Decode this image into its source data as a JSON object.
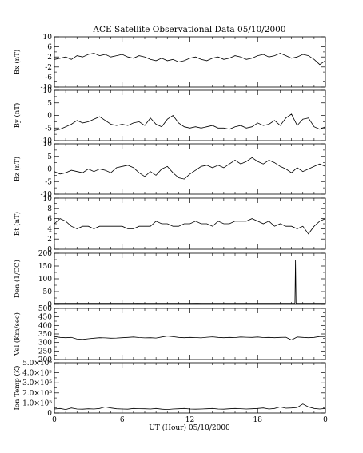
{
  "figure": {
    "title": "ACE Satellite Observational Data   05/10/2000",
    "xlabel": "UT (Hour)   05/10/2000"
  },
  "chart_data": [
    {
      "type": "line",
      "id": "bx",
      "ylabel": "Bx (nT)",
      "ylim": [
        -10,
        10
      ],
      "yticks": [
        "-10",
        "-6",
        "-2",
        "2",
        "6",
        "10"
      ],
      "yticks_values": [
        -10,
        -6,
        -2,
        2,
        6,
        10
      ],
      "xlim": [
        0,
        24
      ],
      "x": [
        0,
        0.5,
        1,
        1.5,
        2,
        2.5,
        3,
        3.5,
        4,
        4.5,
        5,
        5.5,
        6,
        6.5,
        7,
        7.5,
        8,
        8.5,
        9,
        9.5,
        10,
        10.5,
        11,
        11.5,
        12,
        12.5,
        13,
        13.5,
        14,
        14.5,
        15,
        15.5,
        16,
        16.5,
        17,
        17.5,
        18,
        18.5,
        19,
        19.5,
        20,
        20.5,
        21,
        21.5,
        22,
        22.5,
        23,
        23.5,
        24
      ],
      "values": [
        1.0,
        1.5,
        2.0,
        1.0,
        2.5,
        2.0,
        3.0,
        3.5,
        2.5,
        3.0,
        2.0,
        2.5,
        3.0,
        2.0,
        1.5,
        2.5,
        2.0,
        1.0,
        0.5,
        1.5,
        0.5,
        1.0,
        0.0,
        0.5,
        1.5,
        2.0,
        1.0,
        0.5,
        1.5,
        2.0,
        1.0,
        1.5,
        2.5,
        2.0,
        1.0,
        1.5,
        2.5,
        3.0,
        2.0,
        2.5,
        3.5,
        2.5,
        1.5,
        2.0,
        3.0,
        2.5,
        1.0,
        -1.0,
        0.5
      ]
    },
    {
      "type": "line",
      "id": "by",
      "ylabel": "By (nT)",
      "ylim": [
        -10,
        10
      ],
      "yticks": [
        "-10",
        "-5",
        "0",
        "5",
        "10"
      ],
      "yticks_values": [
        -10,
        -5,
        0,
        5,
        10
      ],
      "xlim": [
        0,
        24
      ],
      "x": [
        0,
        0.5,
        1,
        1.5,
        2,
        2.5,
        3,
        3.5,
        4,
        4.5,
        5,
        5.5,
        6,
        6.5,
        7,
        7.5,
        8,
        8.5,
        9,
        9.5,
        10,
        10.5,
        11,
        11.5,
        12,
        12.5,
        13,
        13.5,
        14,
        14.5,
        15,
        15.5,
        16,
        16.5,
        17,
        17.5,
        18,
        18.5,
        19,
        19.5,
        20,
        20.5,
        21,
        21.5,
        22,
        22.5,
        23,
        23.5,
        24
      ],
      "values": [
        -6.0,
        -5.5,
        -4.5,
        -3.5,
        -2.0,
        -3.0,
        -2.5,
        -1.5,
        -0.5,
        -2.0,
        -3.5,
        -4.0,
        -3.5,
        -4.0,
        -3.0,
        -2.5,
        -4.0,
        -1.0,
        -3.5,
        -4.5,
        -1.5,
        0.0,
        -3.0,
        -4.5,
        -5.0,
        -4.5,
        -5.0,
        -4.5,
        -4.0,
        -5.0,
        -5.0,
        -5.5,
        -4.5,
        -4.0,
        -5.0,
        -4.5,
        -3.0,
        -4.0,
        -3.5,
        -2.0,
        -4.0,
        -1.0,
        0.5,
        -4.0,
        -1.5,
        -1.0,
        -4.5,
        -5.5,
        -4.5
      ]
    },
    {
      "type": "line",
      "id": "bz",
      "ylabel": "Bz (nT)",
      "ylim": [
        -10,
        10
      ],
      "yticks": [
        "-10",
        "-5",
        "0",
        "5",
        "10"
      ],
      "yticks_values": [
        -10,
        -5,
        0,
        5,
        10
      ],
      "xlim": [
        0,
        24
      ],
      "x": [
        0,
        0.5,
        1,
        1.5,
        2,
        2.5,
        3,
        3.5,
        4,
        4.5,
        5,
        5.5,
        6,
        6.5,
        7,
        7.5,
        8,
        8.5,
        9,
        9.5,
        10,
        10.5,
        11,
        11.5,
        12,
        12.5,
        13,
        13.5,
        14,
        14.5,
        15,
        15.5,
        16,
        16.5,
        17,
        17.5,
        18,
        18.5,
        19,
        19.5,
        20,
        20.5,
        21,
        21.5,
        22,
        22.5,
        23,
        23.5,
        24
      ],
      "values": [
        -1.0,
        -2.0,
        -1.5,
        -0.5,
        -1.0,
        -1.5,
        0.0,
        -1.0,
        0.0,
        -0.5,
        -1.5,
        0.5,
        1.0,
        1.5,
        0.5,
        -1.5,
        -3.0,
        -1.0,
        -2.5,
        0.0,
        1.0,
        -1.5,
        -3.5,
        -4.0,
        -2.0,
        -0.5,
        1.0,
        1.5,
        0.5,
        1.5,
        0.5,
        2.0,
        3.5,
        2.0,
        3.0,
        4.5,
        3.0,
        2.0,
        3.5,
        2.5,
        1.0,
        0.0,
        -1.5,
        0.5,
        -1.0,
        0.0,
        1.0,
        2.0,
        1.0
      ]
    },
    {
      "type": "line",
      "id": "bt",
      "ylabel": "Bt (nT)",
      "ylim": [
        0,
        10
      ],
      "yticks": [
        "0",
        "2",
        "4",
        "6",
        "8",
        "10"
      ],
      "yticks_values": [
        0,
        2,
        4,
        6,
        8,
        10
      ],
      "xlim": [
        0,
        24
      ],
      "x": [
        0,
        0.5,
        1,
        1.5,
        2,
        2.5,
        3,
        3.5,
        4,
        4.5,
        5,
        5.5,
        6,
        6.5,
        7,
        7.5,
        8,
        8.5,
        9,
        9.5,
        10,
        10.5,
        11,
        11.5,
        12,
        12.5,
        13,
        13.5,
        14,
        14.5,
        15,
        15.5,
        16,
        16.5,
        17,
        17.5,
        18,
        18.5,
        19,
        19.5,
        20,
        20.5,
        21,
        21.5,
        22,
        22.5,
        23,
        23.5,
        24
      ],
      "values": [
        5.0,
        6.0,
        5.5,
        4.5,
        4.0,
        4.5,
        4.5,
        4.0,
        4.5,
        4.5,
        4.5,
        4.5,
        4.5,
        4.0,
        4.0,
        4.5,
        4.5,
        4.5,
        5.5,
        5.0,
        5.0,
        4.5,
        4.5,
        5.0,
        5.0,
        5.5,
        5.0,
        5.0,
        4.5,
        5.5,
        5.0,
        5.0,
        5.5,
        5.5,
        5.5,
        6.0,
        5.5,
        5.0,
        5.5,
        4.5,
        5.0,
        4.5,
        4.5,
        4.0,
        4.5,
        3.0,
        4.5,
        5.5,
        6.0
      ]
    },
    {
      "type": "line",
      "id": "den",
      "ylabel": "Den (1/CC)",
      "ylim": [
        0,
        200
      ],
      "yticks": [
        "0",
        "50",
        "100",
        "150",
        "200"
      ],
      "yticks_values": [
        0,
        50,
        100,
        150,
        200
      ],
      "xlim": [
        0,
        24
      ],
      "x": [
        0,
        1,
        2,
        3,
        4,
        5,
        6,
        7,
        8,
        9,
        10,
        11,
        12,
        13,
        14,
        15,
        16,
        17,
        18,
        19,
        20,
        21,
        21.3,
        21.35,
        21.4,
        21.5,
        22,
        23,
        24
      ],
      "values": [
        4,
        4,
        4,
        4,
        4,
        4,
        4,
        4,
        5,
        5,
        5,
        5,
        5,
        4,
        4,
        4,
        4,
        4,
        4,
        4,
        4,
        4,
        4,
        175,
        4,
        4,
        4,
        4,
        4
      ]
    },
    {
      "type": "line",
      "id": "vel",
      "ylabel": "Vel (Km/sec)",
      "ylim": [
        200,
        500
      ],
      "yticks": [
        "200",
        "250",
        "300",
        "350",
        "400",
        "450",
        "500"
      ],
      "yticks_values": [
        200,
        250,
        300,
        350,
        400,
        450,
        500
      ],
      "xlim": [
        0,
        24
      ],
      "x": [
        0,
        0.5,
        1,
        1.5,
        2,
        2.5,
        3,
        3.5,
        4,
        4.5,
        5,
        5.5,
        6,
        6.5,
        7,
        7.5,
        8,
        8.5,
        9,
        9.5,
        10,
        10.5,
        11,
        11.5,
        12,
        12.5,
        13,
        13.5,
        14,
        14.5,
        15,
        15.5,
        16,
        16.5,
        17,
        17.5,
        18,
        18.5,
        19,
        19.5,
        20,
        20.5,
        21,
        21.5,
        22,
        22.5,
        23,
        23.5,
        24
      ],
      "values": [
        335,
        330,
        328,
        330,
        320,
        318,
        322,
        325,
        328,
        327,
        325,
        326,
        328,
        330,
        332,
        329,
        327,
        328,
        326,
        332,
        338,
        334,
        330,
        328,
        330,
        329,
        327,
        331,
        333,
        330,
        328,
        330,
        329,
        332,
        331,
        330,
        332,
        329,
        330,
        328,
        330,
        331,
        315,
        332,
        330,
        328,
        330,
        335,
        335
      ]
    },
    {
      "type": "line",
      "id": "temp",
      "ylabel": "Ion Temp (K)",
      "ylim": [
        0,
        500000
      ],
      "yticks": [
        "0",
        "1.0×10⁵",
        "2.0×10⁵",
        "3.0×10⁵",
        "4.0×10⁵",
        "5.0×10⁵"
      ],
      "yticks_values": [
        0,
        100000,
        200000,
        300000,
        400000,
        500000
      ],
      "xlim": [
        0,
        24
      ],
      "x": [
        0,
        0.5,
        1,
        1.5,
        2,
        2.5,
        3,
        3.5,
        4,
        4.5,
        5,
        5.5,
        6,
        6.5,
        7,
        7.5,
        8,
        8.5,
        9,
        9.5,
        10,
        10.5,
        11,
        11.5,
        12,
        12.5,
        13,
        13.5,
        14,
        14.5,
        15,
        15.5,
        16,
        16.5,
        17,
        17.5,
        18,
        18.5,
        19,
        19.5,
        20,
        20.5,
        21,
        21.5,
        22,
        22.5,
        23,
        23.5,
        24
      ],
      "values": [
        40000,
        45000,
        35000,
        50000,
        40000,
        38000,
        42000,
        40000,
        45000,
        60000,
        50000,
        42000,
        40000,
        38000,
        45000,
        43000,
        42000,
        40000,
        45000,
        38000,
        35000,
        40000,
        42000,
        45000,
        40000,
        38000,
        40000,
        42000,
        45000,
        40000,
        38000,
        42000,
        45000,
        43000,
        40000,
        42000,
        45000,
        50000,
        40000,
        45000,
        60000,
        48000,
        50000,
        55000,
        90000,
        60000,
        45000,
        40000,
        45000
      ]
    }
  ],
  "x_axis": {
    "ticks": [
      "0",
      "6",
      "12",
      "18",
      "0"
    ],
    "tick_hours": [
      0,
      6,
      12,
      18,
      24
    ]
  }
}
